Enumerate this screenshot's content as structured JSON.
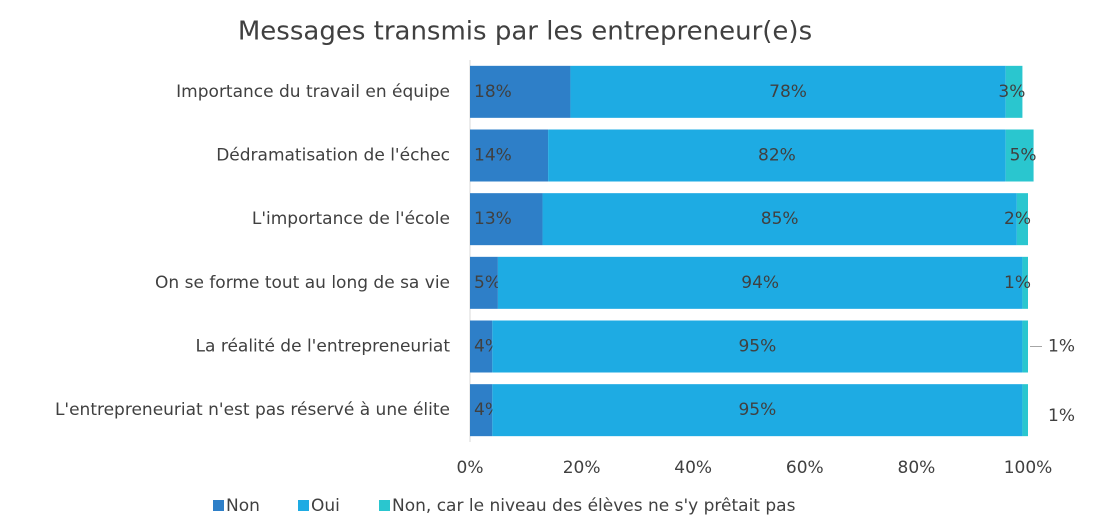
{
  "chart_data": {
    "type": "stacked-bar-horizontal",
    "title": "Messages transmis par les entrepreneur(e)s",
    "categories": [
      "Importance du travail en équipe",
      "Dédramatisation de l'échec",
      "L'importance de l'école",
      "On se forme tout au long de sa vie",
      "La réalité de l'entrepreneuriat",
      "L'entrepreneuriat n'est pas réservé à une élite"
    ],
    "series": [
      {
        "name": "Non",
        "color": "#2e7fc8",
        "values": [
          18,
          14,
          13,
          5,
          4,
          4
        ],
        "value_labels": [
          "18%",
          "14%",
          "13%",
          "5%",
          "4%",
          "4%"
        ]
      },
      {
        "name": "Oui",
        "color": "#1eabe3",
        "values": [
          78,
          82,
          85,
          94,
          95,
          95
        ],
        "value_labels": [
          "78%",
          "82%",
          "85%",
          "94%",
          "95%",
          "95%"
        ]
      },
      {
        "name": "Non, car le niveau des élèves ne s'y prêtait pas",
        "color": "#2ac6cf",
        "values": [
          3,
          5,
          2,
          1,
          1,
          1
        ],
        "value_labels": [
          "3%",
          "5%",
          "2%",
          "1%",
          "1%",
          "1%"
        ]
      }
    ],
    "xlim": [
      0,
      100
    ],
    "xticks": [
      {
        "value": 0,
        "label": "0%"
      },
      {
        "value": 20,
        "label": "20%"
      },
      {
        "value": 40,
        "label": "40%"
      },
      {
        "value": 60,
        "label": "60%"
      },
      {
        "value": 80,
        "label": "80%"
      },
      {
        "value": 100,
        "label": "100%"
      }
    ],
    "legend": "bottom"
  }
}
